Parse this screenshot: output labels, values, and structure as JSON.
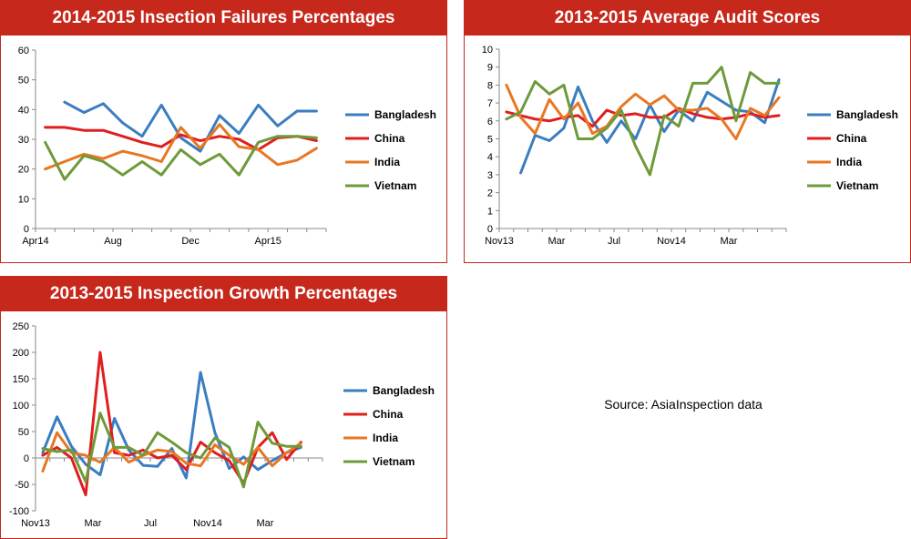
{
  "colors": {
    "Bangladesh": "#3b7dc1",
    "China": "#e01e1e",
    "India": "#e87722",
    "Vietnam": "#6e9a3a",
    "header": "#c6281c"
  },
  "chart_data": [
    {
      "type": "line",
      "title": "2014-2015 Insection Failures Percentages",
      "ylim": [
        0,
        60
      ],
      "yticks": [
        0,
        10,
        20,
        30,
        40,
        50,
        60
      ],
      "x_tick_labels": [
        {
          "i": 0,
          "label": "Apr14"
        },
        {
          "i": 4,
          "label": "Aug"
        },
        {
          "i": 8,
          "label": "Dec"
        },
        {
          "i": 12,
          "label": "Apr15"
        }
      ],
      "n_points": 15,
      "legend_position": "right",
      "series": [
        {
          "name": "Bangladesh",
          "values": [
            null,
            42.5,
            39,
            42,
            35.5,
            31,
            41.5,
            30.5,
            26,
            38,
            32,
            41.5,
            34.5,
            39.5,
            39.5
          ]
        },
        {
          "name": "China",
          "values": [
            34,
            34,
            33,
            33,
            31,
            29,
            27.5,
            31.5,
            29.5,
            31,
            30,
            26.5,
            30.5,
            31,
            29.5
          ]
        },
        {
          "name": "India",
          "values": [
            20,
            22.5,
            25,
            23.5,
            26,
            24.5,
            22.5,
            34,
            27,
            35,
            27.5,
            26.5,
            21.5,
            23,
            27
          ]
        },
        {
          "name": "Vietnam",
          "values": [
            29,
            16.5,
            24.5,
            22.5,
            18,
            22.5,
            18,
            26.5,
            21.5,
            25,
            18,
            29,
            31,
            31,
            30.5
          ]
        }
      ]
    },
    {
      "type": "line",
      "title": "2013-2015 Average Audit Scores",
      "ylim": [
        0,
        10
      ],
      "yticks": [
        0,
        1,
        2,
        3,
        4,
        5,
        6,
        7,
        8,
        9,
        10
      ],
      "x_tick_labels": [
        {
          "i": 0,
          "label": "Nov13"
        },
        {
          "i": 4,
          "label": "Mar"
        },
        {
          "i": 8,
          "label": "Jul"
        },
        {
          "i": 12,
          "label": "Nov14"
        },
        {
          "i": 16,
          "label": "Mar"
        }
      ],
      "n_points": 20,
      "legend_position": "right",
      "series": [
        {
          "name": "Bangladesh",
          "values": [
            null,
            3.1,
            5.2,
            4.9,
            5.6,
            7.9,
            6,
            4.8,
            6,
            5,
            6.9,
            5.4,
            6.6,
            6,
            7.6,
            7.1,
            6.6,
            6.5,
            5.9,
            8.3
          ]
        },
        {
          "name": "China",
          "values": [
            6.5,
            6.3,
            6.1,
            6,
            6.2,
            6.3,
            5.7,
            6.6,
            6.3,
            6.4,
            6.2,
            6.2,
            6.7,
            6.4,
            6.2,
            6.1,
            6.2,
            6.4,
            6.2,
            6.3
          ]
        },
        {
          "name": "India",
          "values": [
            8,
            6.2,
            5.3,
            7.2,
            6.1,
            7,
            5.3,
            5.7,
            6.8,
            7.5,
            6.9,
            7.4,
            6.6,
            6.6,
            6.7,
            6.1,
            5,
            6.7,
            6.3,
            7.3
          ]
        },
        {
          "name": "Vietnam",
          "values": [
            6.1,
            6.5,
            8.2,
            7.5,
            8,
            5,
            5,
            5.6,
            6.6,
            4.6,
            3,
            6.3,
            5.7,
            8.1,
            8.1,
            9,
            6,
            8.7,
            8.1,
            8.1
          ]
        }
      ]
    },
    {
      "type": "line",
      "title": "2013-2015 Inspection Growth Percentages",
      "ylim": [
        -100,
        250
      ],
      "yticks": [
        -100,
        -50,
        0,
        50,
        100,
        150,
        200,
        250
      ],
      "x_tick_labels": [
        {
          "i": 0,
          "label": "Nov13"
        },
        {
          "i": 4,
          "label": "Mar"
        },
        {
          "i": 8,
          "label": "Jul"
        },
        {
          "i": 12,
          "label": "Nov14"
        },
        {
          "i": 16,
          "label": "Mar"
        }
      ],
      "n_points": 20,
      "legend_position": "right",
      "series": [
        {
          "name": "Bangladesh",
          "values": [
            10,
            78,
            22,
            -12,
            -32,
            75,
            15,
            -14,
            -16,
            18,
            -38,
            162,
            48,
            -20,
            2,
            -22,
            -5,
            10,
            20,
            null
          ]
        },
        {
          "name": "China",
          "values": [
            5,
            20,
            0,
            -70,
            200,
            10,
            5,
            15,
            0,
            5,
            -22,
            30,
            10,
            -5,
            -48,
            20,
            48,
            -3,
            30,
            null
          ]
        },
        {
          "name": "India",
          "values": [
            -25,
            48,
            10,
            5,
            -8,
            20,
            -8,
            5,
            15,
            12,
            -10,
            -15,
            25,
            5,
            -12,
            20,
            -15,
            10,
            28,
            null
          ]
        },
        {
          "name": "Vietnam",
          "values": [
            18,
            12,
            15,
            -45,
            85,
            20,
            20,
            5,
            48,
            30,
            10,
            0,
            38,
            20,
            -55,
            68,
            28,
            22,
            22,
            null
          ]
        }
      ]
    }
  ],
  "source_note": "Source: AsiaInspection data"
}
